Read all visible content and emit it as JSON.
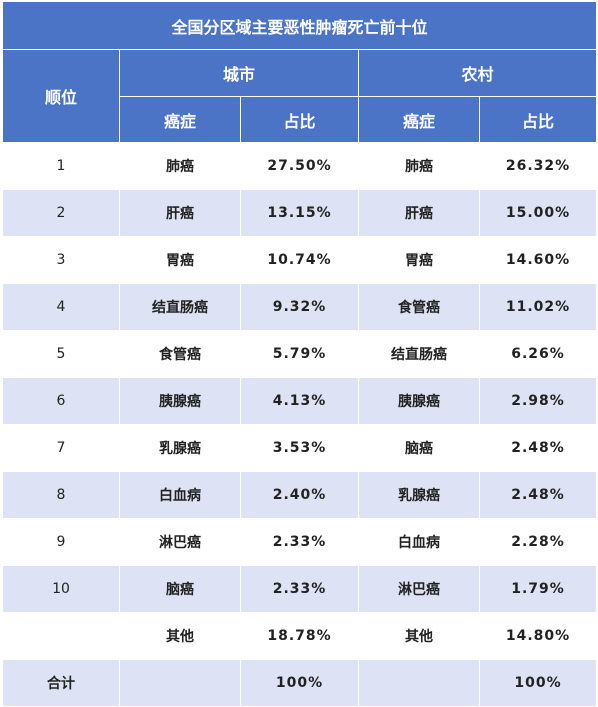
{
  "title": "全国分区域主要恶性肿瘤死亡前十位",
  "headers": {
    "rank": "顺位",
    "city": "城市",
    "rural": "农村",
    "cancer": "癌症",
    "ratio": "占比"
  },
  "rows": [
    {
      "rank": "1",
      "city_cancer": "肺癌",
      "city_ratio": "27.50%",
      "rural_cancer": "肺癌",
      "rural_ratio": "26.32%"
    },
    {
      "rank": "2",
      "city_cancer": "肝癌",
      "city_ratio": "13.15%",
      "rural_cancer": "肝癌",
      "rural_ratio": "15.00%"
    },
    {
      "rank": "3",
      "city_cancer": "胃癌",
      "city_ratio": "10.74%",
      "rural_cancer": "胃癌",
      "rural_ratio": "14.60%"
    },
    {
      "rank": "4",
      "city_cancer": "结直肠癌",
      "city_ratio": "9.32%",
      "rural_cancer": "食管癌",
      "rural_ratio": "11.02%"
    },
    {
      "rank": "5",
      "city_cancer": "食管癌",
      "city_ratio": "5.79%",
      "rural_cancer": "结直肠癌",
      "rural_ratio": "6.26%"
    },
    {
      "rank": "6",
      "city_cancer": "胰腺癌",
      "city_ratio": "4.13%",
      "rural_cancer": "胰腺癌",
      "rural_ratio": "2.98%"
    },
    {
      "rank": "7",
      "city_cancer": "乳腺癌",
      "city_ratio": "3.53%",
      "rural_cancer": "脑癌",
      "rural_ratio": "2.48%"
    },
    {
      "rank": "8",
      "city_cancer": "白血病",
      "city_ratio": "2.40%",
      "rural_cancer": "乳腺癌",
      "rural_ratio": "2.48%"
    },
    {
      "rank": "9",
      "city_cancer": "淋巴癌",
      "city_ratio": "2.33%",
      "rural_cancer": "白血病",
      "rural_ratio": "2.28%"
    },
    {
      "rank": "10",
      "city_cancer": "脑癌",
      "city_ratio": "2.33%",
      "rural_cancer": "淋巴癌",
      "rural_ratio": "1.79%"
    },
    {
      "rank": "",
      "city_cancer": "其他",
      "city_ratio": "18.78%",
      "rural_cancer": "其他",
      "rural_ratio": "14.80%"
    },
    {
      "rank": "合计",
      "city_cancer": "",
      "city_ratio": "100%",
      "rural_cancer": "",
      "rural_ratio": "100%"
    }
  ]
}
